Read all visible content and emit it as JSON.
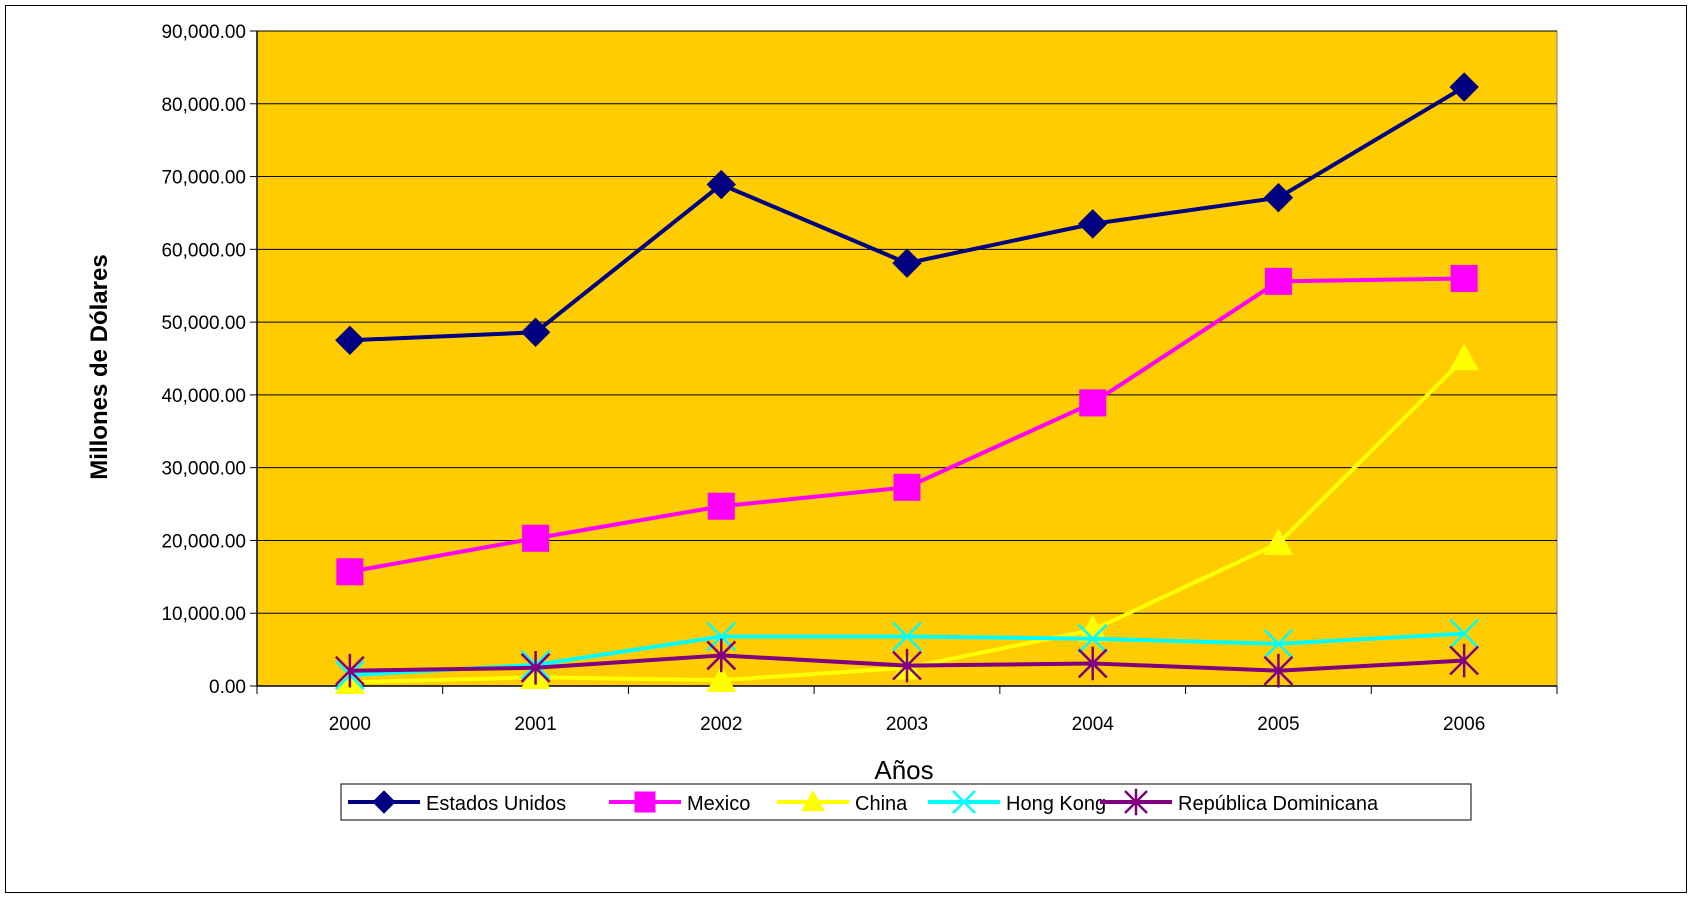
{
  "chart_data": {
    "type": "line",
    "title": "",
    "xlabel": "Años",
    "ylabel": "Millones de Dólares",
    "categories": [
      "2000",
      "2001",
      "2002",
      "2003",
      "2004",
      "2005",
      "2006"
    ],
    "ylim": [
      0,
      90000
    ],
    "yticks": [
      0,
      10000,
      20000,
      30000,
      40000,
      50000,
      60000,
      70000,
      80000,
      90000
    ],
    "ytick_labels": [
      "0.00",
      "10,000.00",
      "20,000.00",
      "30,000.00",
      "40,000.00",
      "50,000.00",
      "60,000.00",
      "70,000.00",
      "80,000.00",
      "90,000.00"
    ],
    "grid": true,
    "plot_background": "#FFCC00",
    "legend_position": "bottom",
    "series": [
      {
        "name": "Estados Unidos",
        "color": "#000080",
        "marker": "diamond",
        "values": [
          47500,
          48600,
          68900,
          58100,
          63500,
          67100,
          82300
        ]
      },
      {
        "name": "Mexico",
        "color": "#FF00FF",
        "marker": "square",
        "values": [
          15700,
          20300,
          24700,
          27300,
          38900,
          55600,
          56000
        ]
      },
      {
        "name": "China",
        "color": "#FFFF00",
        "marker": "triangle",
        "values": [
          500,
          1200,
          800,
          2500,
          7700,
          19600,
          45000
        ]
      },
      {
        "name": "Hong Kong",
        "color": "#00FFFF",
        "marker": "x",
        "values": [
          1500,
          2900,
          6800,
          6800,
          6500,
          5800,
          7200
        ]
      },
      {
        "name": "República Dominicana",
        "color": "#800080",
        "marker": "star",
        "values": [
          2100,
          2500,
          4200,
          2800,
          3100,
          2100,
          3500
        ]
      }
    ]
  }
}
